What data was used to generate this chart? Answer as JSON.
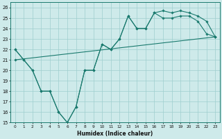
{
  "xlabel": "Humidex (Indice chaleur)",
  "xlim": [
    -0.5,
    23.5
  ],
  "ylim": [
    15,
    26.5
  ],
  "xticks": [
    0,
    1,
    2,
    3,
    4,
    5,
    6,
    7,
    8,
    9,
    10,
    11,
    12,
    13,
    14,
    15,
    16,
    17,
    18,
    19,
    20,
    21,
    22,
    23
  ],
  "yticks": [
    15,
    16,
    17,
    18,
    19,
    20,
    21,
    22,
    23,
    24,
    25,
    26
  ],
  "bg_color": "#ceeaea",
  "line_color": "#1a7a6e",
  "grid_color": "#9ecece",
  "line1_x": [
    0,
    1,
    2,
    3,
    4,
    5,
    6,
    7,
    8,
    9,
    10,
    11,
    12,
    13,
    14,
    15,
    16,
    17,
    18,
    19,
    20,
    21,
    22,
    23
  ],
  "line1_y": [
    22,
    21,
    20,
    18,
    18,
    16,
    15,
    16.5,
    20,
    20,
    22.5,
    22,
    23,
    25.2,
    24,
    24,
    25.5,
    25.0,
    25.0,
    25.2,
    25.2,
    24.7,
    23.5,
    23.2
  ],
  "line2_x": [
    0,
    1,
    2,
    3,
    4,
    5,
    6,
    7,
    8,
    9,
    10,
    11,
    12,
    13,
    14,
    15,
    16,
    17,
    18,
    19,
    20,
    21,
    22,
    23
  ],
  "line2_y": [
    22,
    21,
    20,
    18,
    18,
    16,
    15,
    16.5,
    20,
    20,
    22.5,
    22,
    23,
    25.2,
    24,
    24,
    25.5,
    25.7,
    25.5,
    25.7,
    25.5,
    25.2,
    24.7,
    23.2
  ],
  "line3_x": [
    0,
    23
  ],
  "line3_y": [
    21,
    23.2
  ]
}
